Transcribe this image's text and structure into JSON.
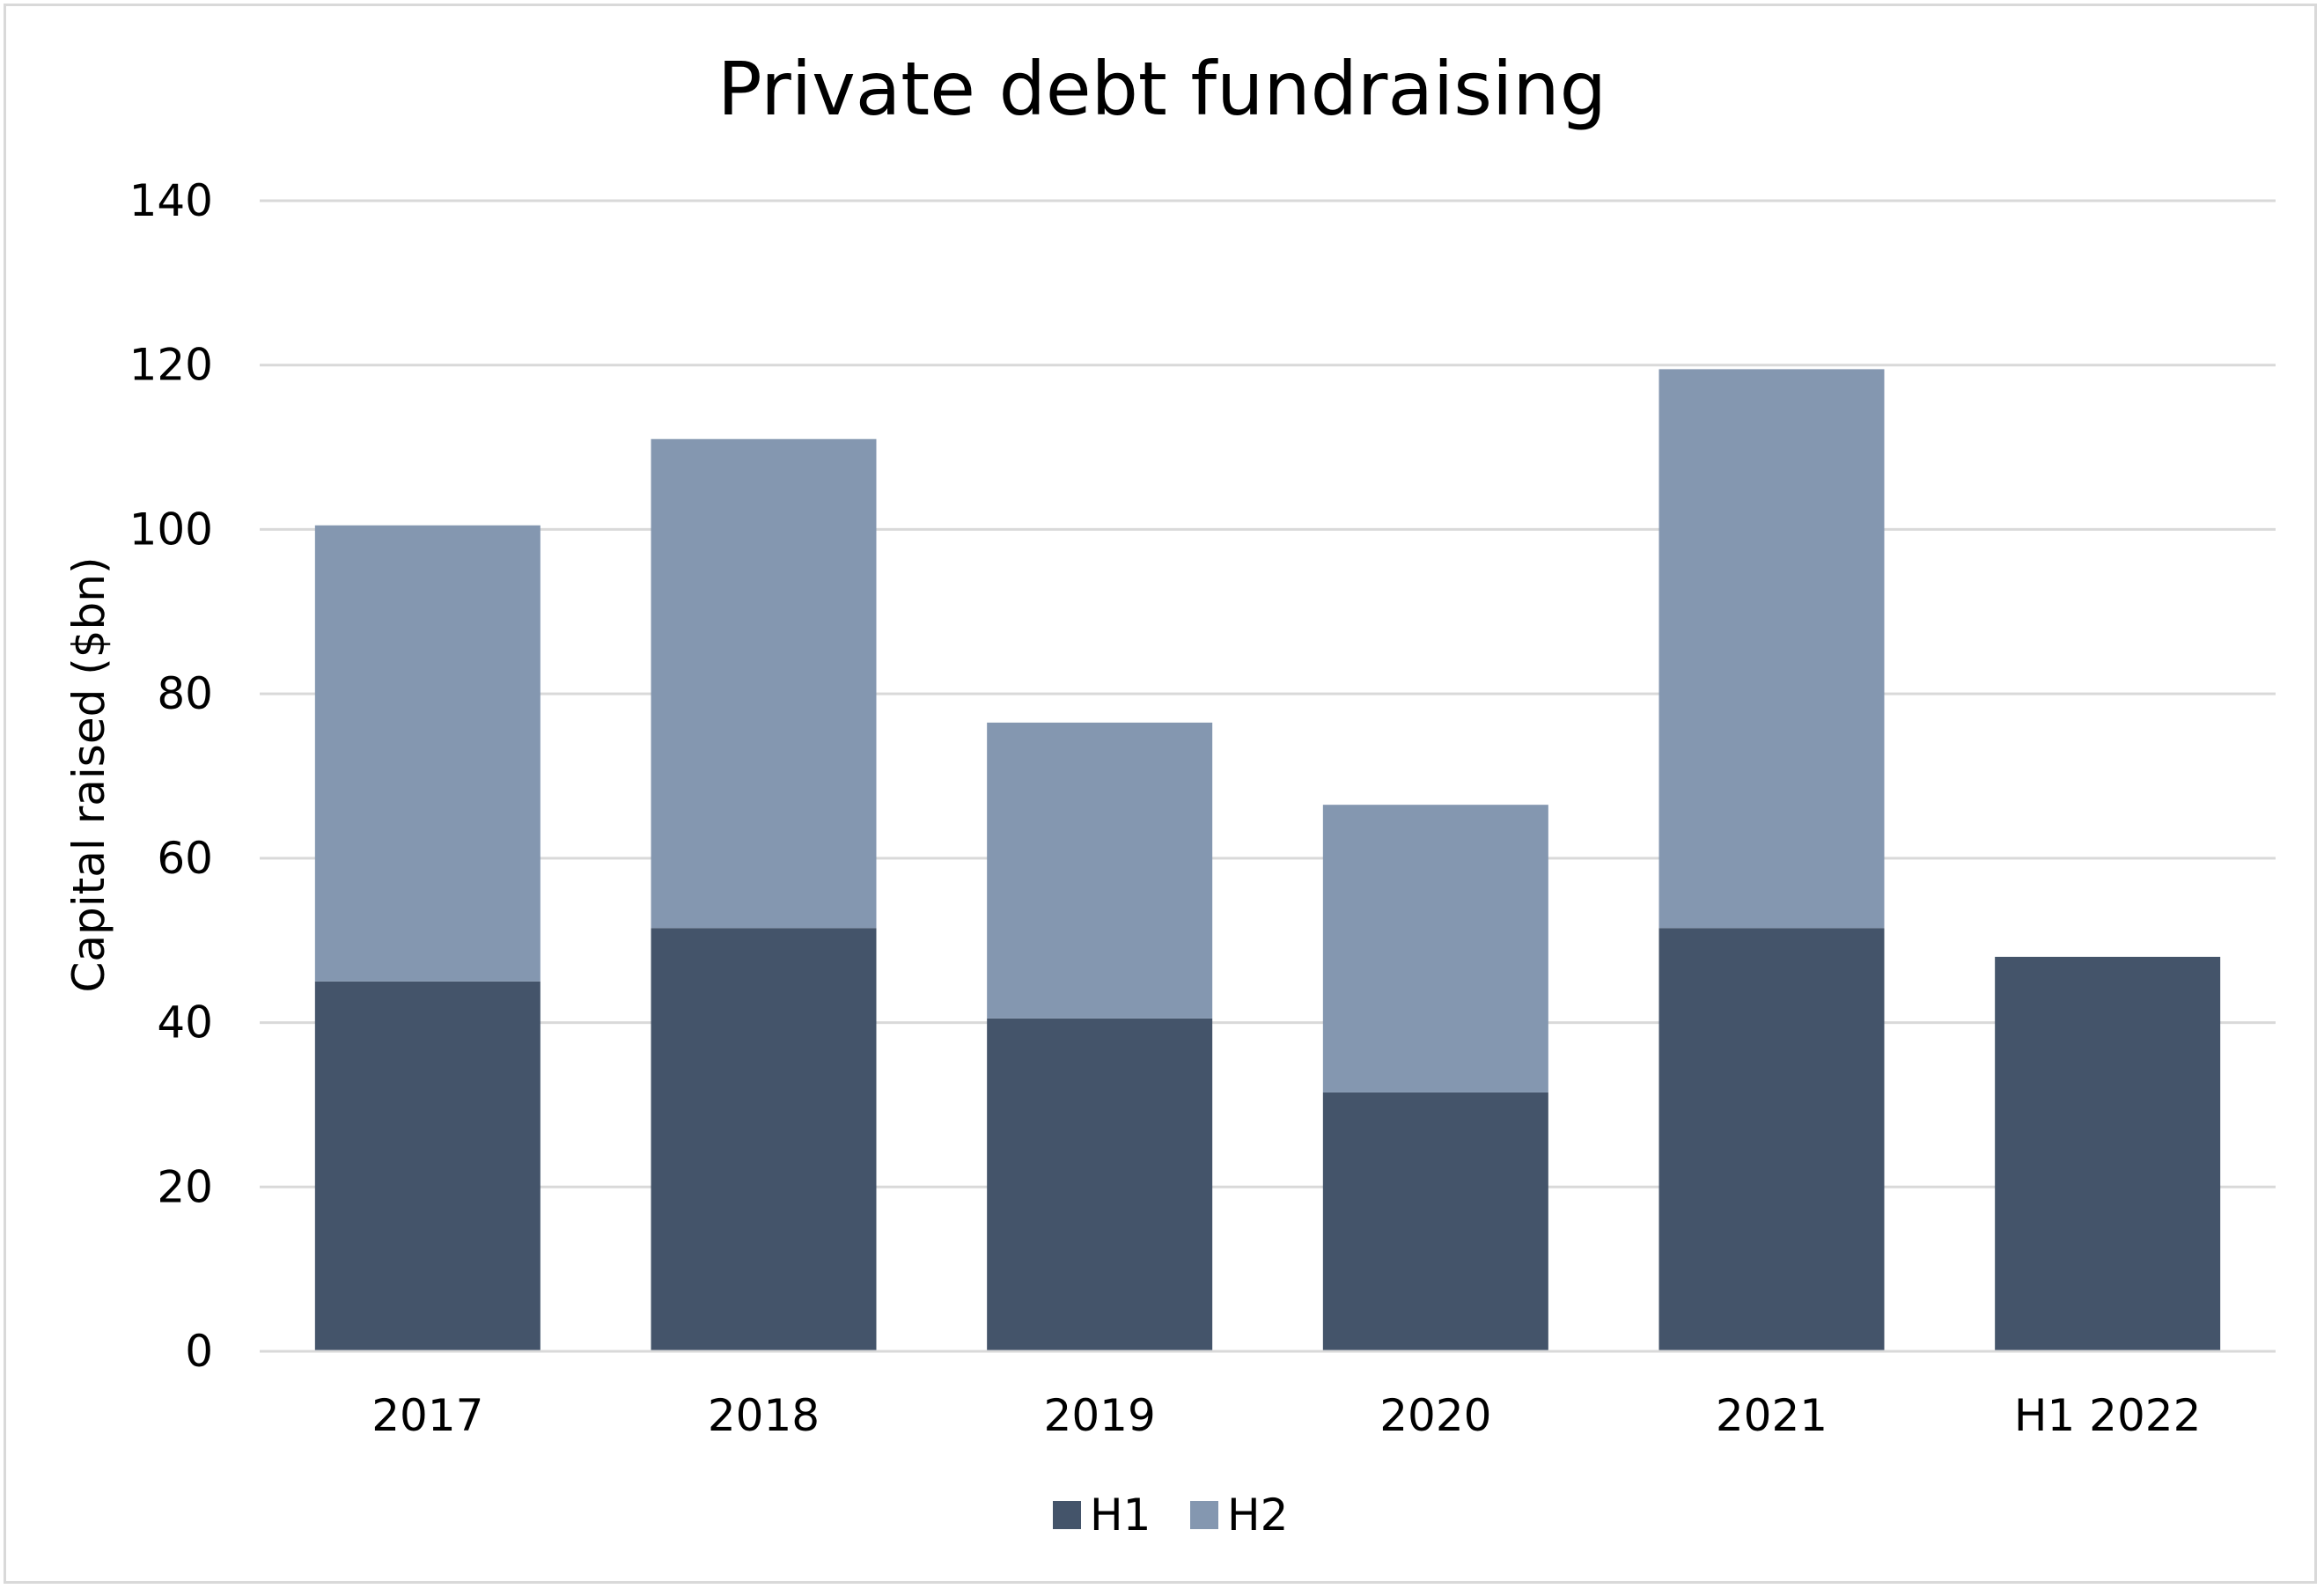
{
  "chart_data": {
    "type": "bar",
    "stacked": true,
    "title": "Private debt fundraising",
    "xlabel": "",
    "ylabel": "Capital raised ($bn)",
    "ylim": [
      0,
      140
    ],
    "yticks": [
      "0",
      "20",
      "40",
      "60",
      "80",
      "100",
      "120",
      "140"
    ],
    "categories": [
      "2017",
      "2018",
      "2019",
      "2020",
      "2021",
      "H1 2022"
    ],
    "series": [
      {
        "name": "H1",
        "color": "#44546a",
        "values": [
          45,
          51.5,
          40.5,
          31.5,
          51.5,
          48
        ]
      },
      {
        "name": "H2",
        "color": "#8497b0",
        "values": [
          55.5,
          59.5,
          36,
          35,
          68,
          0
        ]
      }
    ],
    "grid": true,
    "legend": "bottom-center"
  }
}
